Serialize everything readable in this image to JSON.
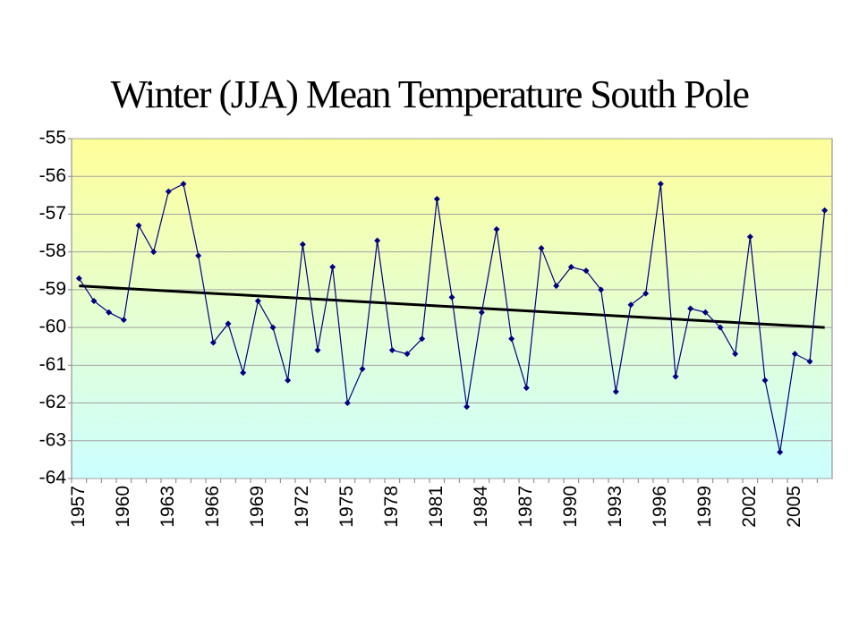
{
  "chart_data": {
    "type": "line",
    "title": "Winter (JJA) Mean Temperature South Pole",
    "categories": [
      "1957",
      null,
      null,
      "1960",
      null,
      null,
      "1963",
      null,
      null,
      "1966",
      null,
      null,
      "1969",
      null,
      null,
      "1972",
      null,
      null,
      "1975",
      null,
      null,
      "1978",
      null,
      null,
      "1981",
      null,
      null,
      "1984",
      null,
      null,
      "1987",
      null,
      null,
      "1990",
      null,
      null,
      "1993",
      null,
      null,
      "1996",
      null,
      null,
      "1999",
      null,
      null,
      "2002",
      null,
      null,
      "2005",
      null,
      null
    ],
    "values": [
      -58.7,
      -59.3,
      -59.6,
      -59.8,
      -57.3,
      -58.0,
      -56.4,
      -56.2,
      -58.1,
      -60.4,
      -59.9,
      -61.2,
      -59.3,
      -60.0,
      -61.4,
      -57.8,
      -60.6,
      -58.4,
      -62.0,
      -61.1,
      -57.7,
      -60.6,
      -60.7,
      -60.3,
      -56.6,
      -59.2,
      -62.1,
      -59.6,
      -57.4,
      -60.3,
      -61.6,
      -57.9,
      -58.9,
      -58.4,
      -58.5,
      -59.0,
      -61.7,
      -59.4,
      -59.1,
      -56.2,
      -61.3,
      -59.5,
      -59.6,
      -60.0,
      -60.7,
      -57.6,
      -61.4,
      -63.3,
      -60.7,
      -60.9,
      -56.9
    ],
    "color": "#000080",
    "trend": {
      "values": [
        -58.9,
        -60.0
      ],
      "color": "#000000"
    },
    "ylim": [
      -64,
      -55
    ],
    "yticks": [
      -64,
      -63,
      -62,
      -61,
      -60,
      -59,
      -58,
      -57,
      -56,
      -55
    ],
    "grid": true
  }
}
